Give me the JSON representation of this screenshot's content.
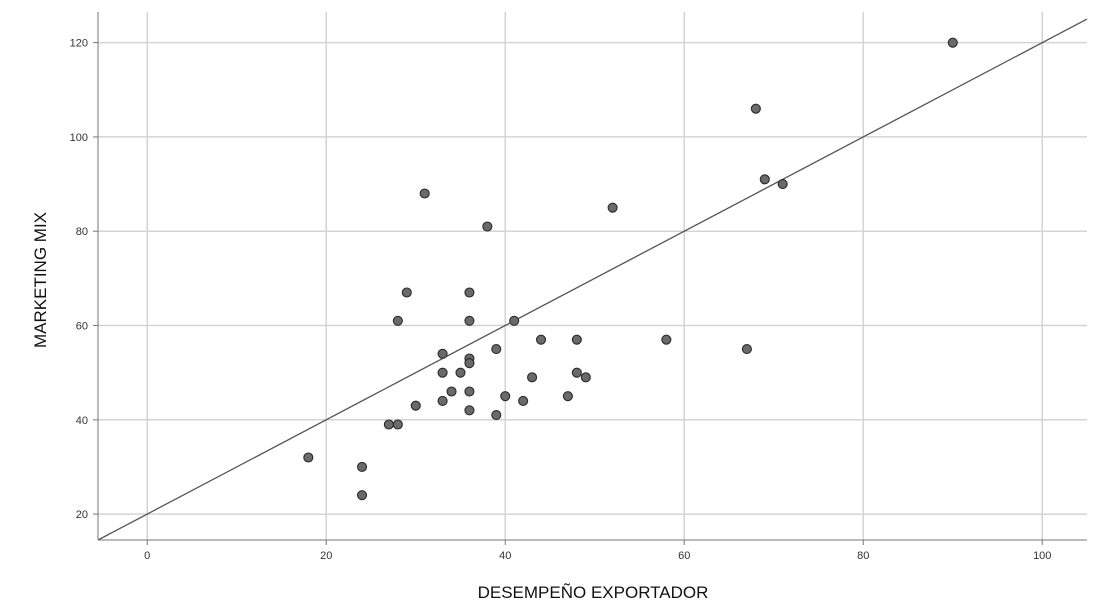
{
  "chart_data": {
    "type": "scatter",
    "title": "",
    "xlabel": "DESEMPEÑO EXPORTADOR",
    "ylabel": "MARKETING MIX",
    "xlim": [
      -5.5,
      105
    ],
    "ylim": [
      14.5,
      126.5
    ],
    "xticks": [
      0,
      20,
      40,
      60,
      80,
      100
    ],
    "yticks": [
      20,
      40,
      60,
      80,
      100,
      120
    ],
    "grid": true,
    "reference_line": {
      "slope": 1,
      "intercept": 20
    },
    "colors": {
      "point_fill": "#6a6a6a",
      "point_stroke": "#2a2a2a",
      "line": "#555555",
      "grid": "#d4d4d4",
      "frame": "#777777"
    },
    "points": [
      {
        "x": 18,
        "y": 32
      },
      {
        "x": 24,
        "y": 30
      },
      {
        "x": 24,
        "y": 24
      },
      {
        "x": 27,
        "y": 39
      },
      {
        "x": 28,
        "y": 39
      },
      {
        "x": 28,
        "y": 61
      },
      {
        "x": 29,
        "y": 67
      },
      {
        "x": 30,
        "y": 43
      },
      {
        "x": 31,
        "y": 88
      },
      {
        "x": 33,
        "y": 54
      },
      {
        "x": 33,
        "y": 50
      },
      {
        "x": 33,
        "y": 44
      },
      {
        "x": 34,
        "y": 46
      },
      {
        "x": 35,
        "y": 50
      },
      {
        "x": 36,
        "y": 67
      },
      {
        "x": 36,
        "y": 61
      },
      {
        "x": 36,
        "y": 53
      },
      {
        "x": 36,
        "y": 52
      },
      {
        "x": 36,
        "y": 46
      },
      {
        "x": 36,
        "y": 42
      },
      {
        "x": 38,
        "y": 81
      },
      {
        "x": 39,
        "y": 55
      },
      {
        "x": 39,
        "y": 41
      },
      {
        "x": 40,
        "y": 45
      },
      {
        "x": 41,
        "y": 61
      },
      {
        "x": 42,
        "y": 44
      },
      {
        "x": 43,
        "y": 49
      },
      {
        "x": 44,
        "y": 57
      },
      {
        "x": 47,
        "y": 45
      },
      {
        "x": 48,
        "y": 57
      },
      {
        "x": 48,
        "y": 50
      },
      {
        "x": 49,
        "y": 49
      },
      {
        "x": 52,
        "y": 85
      },
      {
        "x": 58,
        "y": 57
      },
      {
        "x": 67,
        "y": 55
      },
      {
        "x": 68,
        "y": 106
      },
      {
        "x": 69,
        "y": 91
      },
      {
        "x": 71,
        "y": 90
      },
      {
        "x": 90,
        "y": 120
      }
    ]
  }
}
